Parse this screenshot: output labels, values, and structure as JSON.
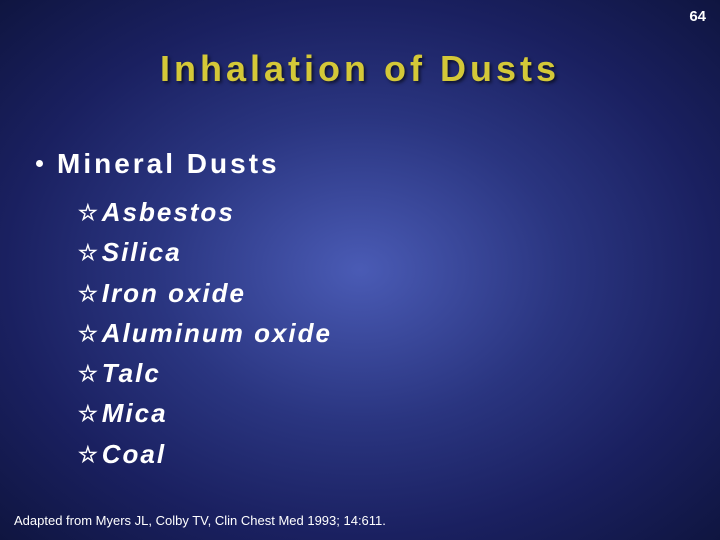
{
  "page_number": "64",
  "title": "Inhalation of Dusts",
  "section_header": "Mineral Dusts",
  "items": [
    "Asbestos",
    "Silica",
    "Iron oxide",
    "Aluminum oxide",
    "Talc",
    "Mica",
    "Coal"
  ],
  "citation": "Adapted from Myers JL, Colby TV, Clin Chest Med 1993; 14:611.",
  "colors": {
    "title_color": "#d4c838",
    "text_color": "#ffffff",
    "bg_center": "#4a5bb5",
    "bg_edge": "#0f1540"
  },
  "typography": {
    "title_fontsize": 36,
    "section_fontsize": 28,
    "item_fontsize": 26,
    "citation_fontsize": 13,
    "title_letter_spacing": 4,
    "item_letter_spacing": 2
  },
  "bullet_glyph": "☆"
}
